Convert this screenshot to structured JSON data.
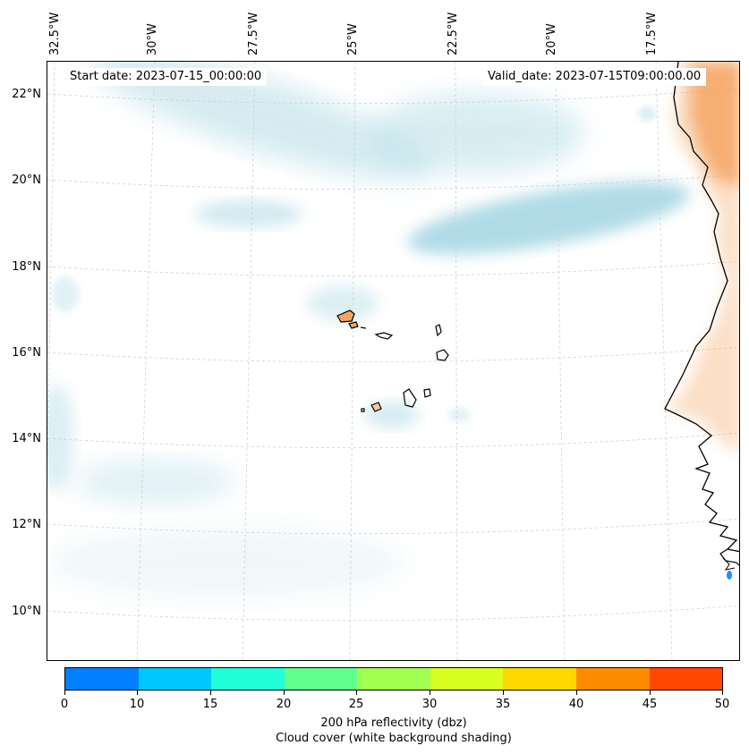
{
  "header": {
    "start_date": "Start date: 2023-07-15_00:00:00",
    "valid_date": "Valid_date: 2023-07-15T09:00:00.00"
  },
  "map": {
    "lon_labels": [
      "32.5°W",
      "30°W",
      "27.5°W",
      "25°W",
      "22.5°W",
      "20°W",
      "17.5°W"
    ],
    "lat_labels": [
      "22°N",
      "20°N",
      "18°N",
      "16°N",
      "14°N",
      "12°N",
      "10°N"
    ],
    "cloud_color": "#b3dce6",
    "land_color": "#f4a460"
  },
  "colorbar": {
    "tick_labels": [
      "0",
      "10",
      "15",
      "20",
      "25",
      "30",
      "35",
      "40",
      "45",
      "50"
    ],
    "colors": [
      "#0080ff",
      "#00c8ff",
      "#20ffd8",
      "#60ff90",
      "#a0ff50",
      "#d8ff20",
      "#ffd800",
      "#ff8c00",
      "#ff4800"
    ],
    "label": "200 hPa reflectivity (dbz)",
    "sublabel": "Cloud cover (white background shading)"
  }
}
